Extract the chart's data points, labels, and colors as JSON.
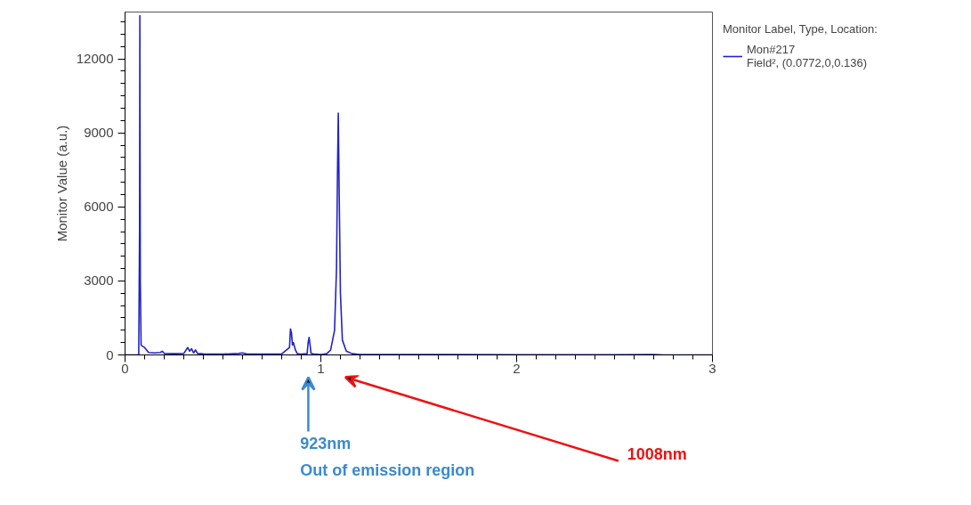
{
  "chart_data": {
    "type": "line",
    "ylabel": "Monitor Value (a.u.)",
    "legend_title": "Monitor Label, Type, Location:",
    "legend": "right",
    "grid": false,
    "marker": "none",
    "line_style": "solid",
    "xlim": [
      0,
      3
    ],
    "ylim": [
      0,
      13900
    ],
    "xticks": [
      0,
      {
        "value": 0.1,
        "label": null
      },
      {
        "value": 0.2,
        "label": null
      },
      {
        "value": 0.3,
        "label": null
      },
      {
        "value": 0.4,
        "label": null
      },
      {
        "value": 0.5,
        "label": null
      },
      {
        "value": 0.6,
        "label": null
      },
      {
        "value": 0.7,
        "label": null
      },
      {
        "value": 0.8,
        "label": null
      },
      {
        "value": 0.9,
        "label": null
      },
      1,
      {
        "value": 1.1,
        "label": null
      },
      {
        "value": 1.2,
        "label": null
      },
      {
        "value": 1.3,
        "label": null
      },
      {
        "value": 1.4,
        "label": null
      },
      {
        "value": 1.5,
        "label": null
      },
      {
        "value": 1.6,
        "label": null
      },
      {
        "value": 1.7,
        "label": null
      },
      {
        "value": 1.8,
        "label": null
      },
      {
        "value": 1.9,
        "label": null
      },
      2,
      {
        "value": 2.1,
        "label": null
      },
      {
        "value": 2.2,
        "label": null
      },
      {
        "value": 2.3,
        "label": null
      },
      {
        "value": 2.4,
        "label": null
      },
      {
        "value": 2.5,
        "label": null
      },
      {
        "value": 2.6,
        "label": null
      },
      {
        "value": 2.7,
        "label": null
      },
      {
        "value": 2.8,
        "label": null
      },
      {
        "value": 2.9,
        "label": null
      },
      3
    ],
    "yticks": [
      0,
      {
        "value": 500,
        "label": null
      },
      {
        "value": 1000,
        "label": null
      },
      {
        "value": 1500,
        "label": null
      },
      {
        "value": 2000,
        "label": null
      },
      {
        "value": 2500,
        "label": null
      },
      3000,
      {
        "value": 3500,
        "label": null
      },
      {
        "value": 4000,
        "label": null
      },
      {
        "value": 4500,
        "label": null
      },
      {
        "value": 5000,
        "label": null
      },
      {
        "value": 5500,
        "label": null
      },
      6000,
      {
        "value": 6500,
        "label": null
      },
      {
        "value": 7000,
        "label": null
      },
      {
        "value": 7500,
        "label": null
      },
      {
        "value": 8000,
        "label": null
      },
      {
        "value": 8500,
        "label": null
      },
      9000,
      {
        "value": 9500,
        "label": null
      },
      {
        "value": 10000,
        "label": null
      },
      {
        "value": 10500,
        "label": null
      },
      {
        "value": 11000,
        "label": null
      },
      {
        "value": 11500,
        "label": null
      },
      12000,
      {
        "value": 12500,
        "label": null
      },
      {
        "value": 13000,
        "label": null
      },
      {
        "value": 13500,
        "label": null
      }
    ],
    "series": [
      {
        "name": "Mon#217\nField², (0.0772,0,0.136)",
        "color": "#2222c8",
        "x": [
          0,
          0.07,
          0.074,
          0.0756,
          0.078,
          0.082,
          0.09,
          0.1,
          0.12,
          0.15,
          0.18,
          0.19,
          0.2,
          0.25,
          0.3,
          0.32,
          0.33,
          0.34,
          0.35,
          0.36,
          0.37,
          0.4,
          0.5,
          0.58,
          0.6,
          0.62,
          0.7,
          0.8,
          0.84,
          0.845,
          0.85,
          0.855,
          0.86,
          0.87,
          0.88,
          0.9,
          0.93,
          0.935,
          0.94,
          0.945,
          0.95,
          0.97,
          1.0,
          1.03,
          1.05,
          1.07,
          1.08,
          1.085,
          1.089,
          1.093,
          1.1,
          1.11,
          1.13,
          1.16,
          1.2,
          1.5,
          2.0,
          2.5,
          2.7,
          2.75,
          3.0
        ],
        "values": [
          0,
          0,
          5000,
          13750,
          3000,
          400,
          350,
          300,
          100,
          80,
          100,
          150,
          60,
          50,
          60,
          300,
          150,
          250,
          80,
          200,
          60,
          40,
          30,
          60,
          80,
          40,
          30,
          40,
          300,
          1050,
          900,
          400,
          500,
          200,
          50,
          30,
          50,
          500,
          710,
          400,
          60,
          30,
          20,
          50,
          200,
          1000,
          3500,
          7400,
          9800,
          7000,
          2500,
          600,
          150,
          50,
          20,
          20,
          10,
          10,
          20,
          0,
          0
        ]
      }
    ],
    "annotations": [
      "923nm\nOut of  emission region",
      "1008nm"
    ]
  }
}
